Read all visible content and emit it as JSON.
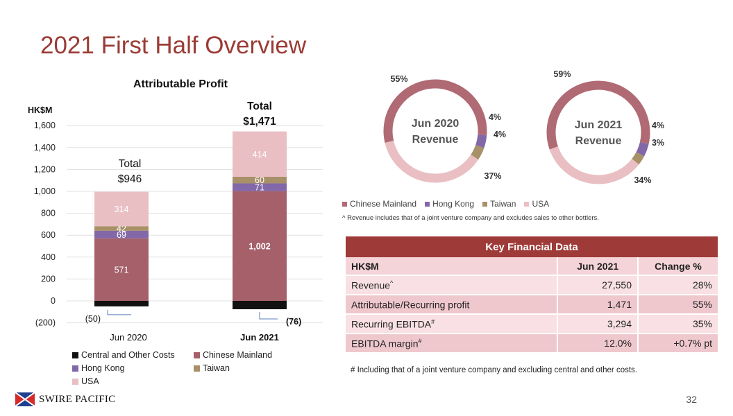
{
  "page": {
    "title": "2021 First Half Overview",
    "number": "32"
  },
  "logo": {
    "name": "SWIRE PACIFIC"
  },
  "chart_data": [
    {
      "type": "bar",
      "title": "Attributable Profit",
      "ylabel": "HK$M",
      "ylim": [
        -200,
        1600
      ],
      "yticks": [
        -200,
        0,
        200,
        400,
        600,
        800,
        1000,
        1200,
        1400,
        1600
      ],
      "ytick_labels": [
        "(200)",
        "0",
        "200",
        "400",
        "600",
        "800",
        "1,000",
        "1,200",
        "1,400",
        "1,600"
      ],
      "grid": true,
      "stacked": true,
      "legend": "bottom",
      "categories": [
        "Jun 2020",
        "Jun 2021"
      ],
      "series": [
        {
          "name": "Central and Other Costs",
          "values": [
            -50,
            -76
          ],
          "labels": [
            "(50)",
            "(76)"
          ],
          "color": "#111111"
        },
        {
          "name": "Chinese Mainland",
          "values": [
            571,
            1002
          ],
          "labels": [
            "571",
            "1,002"
          ],
          "color": "#a5606a"
        },
        {
          "name": "Hong Kong",
          "values": [
            69,
            71
          ],
          "labels": [
            "69",
            "71"
          ],
          "color": "#8268a8"
        },
        {
          "name": "Taiwan",
          "values": [
            42,
            60
          ],
          "labels": [
            "42",
            "60"
          ],
          "color": "#a89068"
        },
        {
          "name": "USA",
          "values": [
            314,
            414
          ],
          "labels": [
            "314",
            "414"
          ],
          "color": "#e9bfc3"
        }
      ],
      "totals": [
        {
          "line1": "Total",
          "line2": "$946",
          "value": 946
        },
        {
          "line1": "Total",
          "line2": "$1,471",
          "value": 1471
        }
      ]
    },
    {
      "type": "pie",
      "title": "Jun 2020 Revenue",
      "title_lines": [
        "Jun 2020",
        "Revenue"
      ],
      "slices": [
        {
          "name": "Chinese Mainland",
          "value": 55,
          "label": "55%"
        },
        {
          "name": "Hong Kong",
          "value": 4,
          "label": "4%"
        },
        {
          "name": "Taiwan",
          "value": 4,
          "label": "4%"
        },
        {
          "name": "USA",
          "value": 37,
          "label": "37%"
        }
      ]
    },
    {
      "type": "pie",
      "title": "Jun 2021 Revenue",
      "title_lines": [
        "Jun 2021",
        "Revenue"
      ],
      "slices": [
        {
          "name": "Chinese Mainland",
          "value": 59,
          "label": "59%"
        },
        {
          "name": "Hong Kong",
          "value": 4,
          "label": "4%"
        },
        {
          "name": "Taiwan",
          "value": 3,
          "label": "3%"
        },
        {
          "name": "USA",
          "value": 34,
          "label": "34%"
        }
      ]
    }
  ],
  "pie_legend": [
    {
      "name": "Chinese Mainland",
      "color": "#b06a74"
    },
    {
      "name": "Hong Kong",
      "color": "#8268a8"
    },
    {
      "name": "Taiwan",
      "color": "#a89068"
    },
    {
      "name": "USA",
      "color": "#e9bfc3"
    }
  ],
  "pie_note": "^ Revenue includes that of a joint venture company and excludes sales to other bottlers.",
  "kfd": {
    "title": "Key Financial Data",
    "headers": [
      "HK$M",
      "Jun 2021",
      "Change %"
    ],
    "rows": [
      {
        "label": "Revenue",
        "mark": "^",
        "value": "27,550",
        "change": "28%"
      },
      {
        "label": "Attributable/Recurring profit",
        "mark": "",
        "value": "1,471",
        "change": "55%"
      },
      {
        "label": "Recurring EBITDA",
        "mark": "#",
        "value": "3,294",
        "change": "35%"
      },
      {
        "label": "EBITDA margin",
        "mark": "#",
        "value": "12.0%",
        "change": "+0.7% pt"
      }
    ],
    "note": "# Including that of a joint venture company and excluding central and other costs."
  }
}
